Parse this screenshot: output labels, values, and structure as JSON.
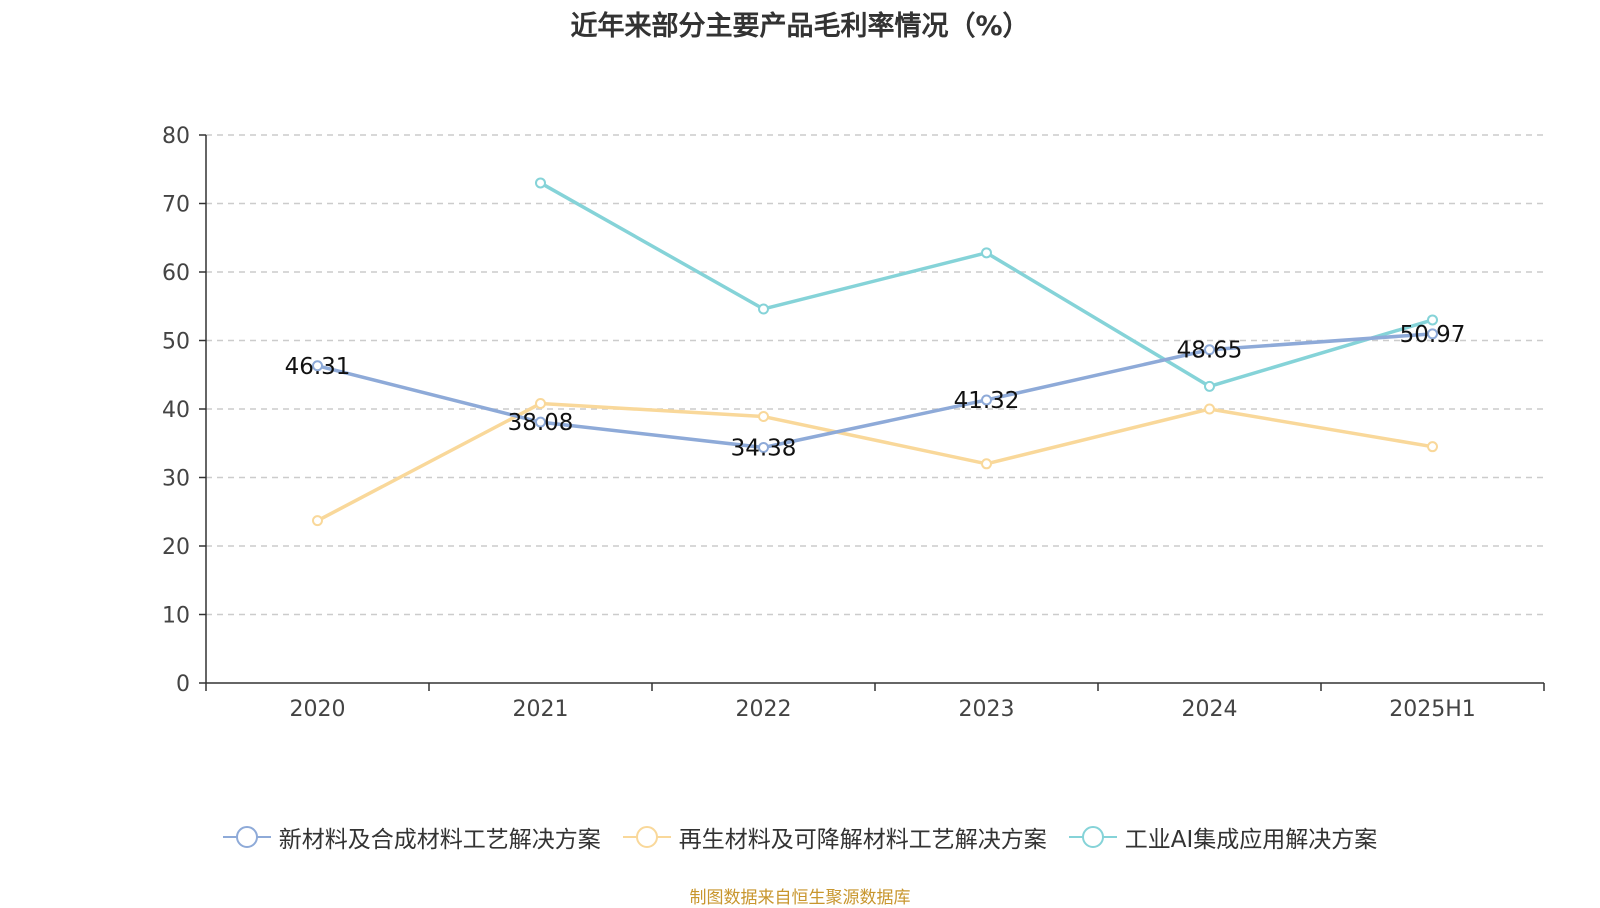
{
  "chart_data": {
    "type": "line",
    "title": "近年来部分主要产品毛利率情况（%）",
    "categories": [
      "2020",
      "2021",
      "2022",
      "2023",
      "2024",
      "2025H1"
    ],
    "ylim": [
      0,
      80
    ],
    "yticks": [
      0,
      10,
      20,
      30,
      40,
      50,
      60,
      70,
      80
    ],
    "grid": true,
    "legend_position": "bottom",
    "series": [
      {
        "name": "新材料及合成材料工艺解决方案",
        "color": "#8eaad8",
        "values": [
          46.31,
          38.08,
          34.38,
          41.32,
          48.65,
          50.97
        ],
        "labels": [
          "46.31",
          "38.08",
          "34.38",
          "41.32",
          "48.65",
          "50.97"
        ],
        "show_labels": true
      },
      {
        "name": "再生材料及可降解材料工艺解决方案",
        "color": "#f9d89a",
        "values": [
          23.7,
          40.8,
          38.9,
          32.0,
          40.0,
          34.5
        ],
        "show_labels": false
      },
      {
        "name": "工业AI集成应用解决方案",
        "color": "#85d3d8",
        "values": [
          null,
          73.0,
          54.6,
          62.8,
          43.3,
          53.0
        ],
        "show_labels": false
      }
    ]
  },
  "source_note": "制图数据来自恒生聚源数据库"
}
